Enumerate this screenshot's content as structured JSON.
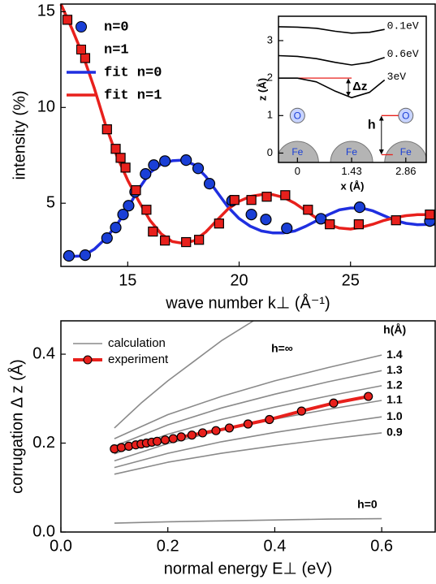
{
  "chart_data": [
    {
      "type": "line",
      "xlabel": "wave number k⊥ (Å⁻¹)",
      "ylabel": "intensity (%)",
      "xlim": [
        12,
        28.8
      ],
      "ylim": [
        1.7,
        15.4
      ],
      "xticks": [
        15,
        20,
        25
      ],
      "yticks": [
        5,
        10,
        15
      ],
      "legend": "upper left",
      "series": [
        {
          "name": "n=0",
          "color": "#1a3fd6",
          "marker": "circle",
          "x": [
            12.36,
            13.09,
            14.07,
            14.46,
            14.79,
            15.04,
            15.33,
            15.8,
            16.17,
            16.67,
            17.62,
            18.16,
            18.67,
            19.68,
            20.55,
            21.2,
            22.14,
            23.67,
            25.41,
            28.56
          ],
          "values": [
            2.25,
            2.29,
            3.18,
            3.73,
            4.41,
            4.87,
            5.59,
            6.53,
            6.99,
            7.2,
            7.25,
            6.82,
            6.02,
            5.13,
            4.41,
            4.15,
            3.69,
            4.19,
            4.79,
            4.07
          ]
        },
        {
          "name": "n=1",
          "color": "#e8201c",
          "marker": "square",
          "x": [
            12.29,
            13.09,
            14.07,
            14.46,
            14.68,
            14.9,
            15.37,
            15.84,
            16.13,
            16.67,
            17.62,
            18.2,
            19.1,
            19.79,
            20.55,
            21.24,
            22.07,
            23.09,
            24.07,
            25.37,
            27.04,
            28.56
          ],
          "values": [
            14.58,
            12.58,
            8.86,
            7.84,
            7.37,
            6.86,
            5.68,
            4.66,
            3.52,
            3.05,
            2.97,
            3.09,
            3.94,
            5.17,
            5.17,
            5.34,
            5.42,
            4.66,
            3.9,
            3.9,
            4.11,
            4.41
          ]
        },
        {
          "name": "fit n=0",
          "color": "#1f2fe0",
          "line": true,
          "x": [
            12.1,
            13,
            13.5,
            14,
            14.5,
            15,
            15.5,
            16,
            16.5,
            17,
            17.5,
            18,
            18.5,
            19,
            19.5,
            20,
            20.5,
            21,
            21.5,
            22,
            22.5,
            23,
            23.5,
            24,
            24.5,
            25,
            25.5,
            26,
            26.5,
            27,
            27.5,
            28,
            28.8
          ],
          "values": [
            2.2,
            2.25,
            2.6,
            3.15,
            3.85,
            4.75,
            5.75,
            6.6,
            7.05,
            7.22,
            7.25,
            7.0,
            6.4,
            5.6,
            4.8,
            4.2,
            3.8,
            3.55,
            3.45,
            3.45,
            3.55,
            3.8,
            4.1,
            4.4,
            4.65,
            4.75,
            4.75,
            4.6,
            4.35,
            4.1,
            3.95,
            3.88,
            3.9
          ]
        },
        {
          "name": "fit n=1",
          "color": "#e8201c",
          "line": true,
          "x": [
            12,
            12.5,
            13,
            13.5,
            14,
            14.5,
            15,
            15.5,
            16,
            16.5,
            17,
            17.5,
            18,
            18.5,
            19,
            19.5,
            20,
            20.5,
            21,
            21.5,
            22,
            22.5,
            23,
            23.5,
            24,
            24.5,
            25,
            25.5,
            26,
            26.5,
            27,
            27.5,
            28,
            28.8
          ],
          "values": [
            15.4,
            14.1,
            12.7,
            11.0,
            9.1,
            7.5,
            6.2,
            5.1,
            4.1,
            3.4,
            3.0,
            2.9,
            3.05,
            3.5,
            4.1,
            4.7,
            5.1,
            5.35,
            5.45,
            5.45,
            5.3,
            5.0,
            4.6,
            4.2,
            3.9,
            3.7,
            3.65,
            3.75,
            3.9,
            4.1,
            4.25,
            4.35,
            4.4,
            4.4
          ]
        }
      ]
    },
    {
      "type": "line",
      "xlabel": "x (Å)",
      "ylabel": "z (Å)",
      "xlim": [
        -0.5,
        3.4
      ],
      "ylim": [
        -0.25,
        3.65
      ],
      "xticks": [
        0,
        1.43,
        2.86
      ],
      "yticks": [
        0,
        1,
        2,
        3
      ],
      "annotations": [
        "Δz",
        "h"
      ],
      "atom_labels": [
        "O",
        "O",
        "Fe",
        "Fe",
        "Fe"
      ],
      "series": [
        {
          "name": "0.1eV",
          "color": "#000000",
          "line": true,
          "x": [
            -0.5,
            0,
            0.5,
            1.0,
            1.43,
            1.9,
            2.3
          ],
          "values": [
            3.37,
            3.36,
            3.33,
            3.25,
            3.2,
            3.22,
            3.3
          ]
        },
        {
          "name": "0.6eV",
          "color": "#000000",
          "line": true,
          "x": [
            -0.5,
            0,
            0.5,
            1.0,
            1.43,
            1.9,
            2.3
          ],
          "values": [
            2.6,
            2.58,
            2.52,
            2.42,
            2.35,
            2.42,
            2.55
          ]
        },
        {
          "name": "3eV",
          "color": "#000000",
          "line": true,
          "x": [
            -0.5,
            0,
            0.5,
            1.0,
            1.43,
            1.9,
            2.3
          ],
          "values": [
            2.0,
            2.0,
            1.9,
            1.65,
            1.48,
            1.62,
            1.95
          ]
        }
      ]
    },
    {
      "type": "line",
      "xlabel": "normal energy E⊥ (eV)",
      "ylabel": "corrugation Δ z (Å)",
      "xlim": [
        0,
        0.7
      ],
      "ylim": [
        0,
        0.475
      ],
      "xticks": [
        {
          "value": 0,
          "label": "0.0"
        },
        0.2,
        0.4,
        0.6
      ],
      "yticks": [
        {
          "value": 0,
          "label": "0.0"
        },
        0.2,
        0.4
      ],
      "legend": "upper left",
      "series": [
        {
          "name": "calculation",
          "color": "#8a8a8a",
          "line": true,
          "label_title": "h(Å)",
          "curves": [
            {
              "label": "0.9",
              "x": [
                0.1,
                0.2,
                0.3,
                0.4,
                0.5,
                0.6
              ],
              "values": [
                0.13,
                0.157,
                0.177,
                0.194,
                0.209,
                0.223
              ]
            },
            {
              "label": "1.0",
              "x": [
                0.1,
                0.2,
                0.3,
                0.4,
                0.5,
                0.6
              ],
              "values": [
                0.145,
                0.177,
                0.203,
                0.224,
                0.242,
                0.259
              ]
            },
            {
              "label": "1.1",
              "x": [
                0.1,
                0.2,
                0.3,
                0.4,
                0.5,
                0.6
              ],
              "values": [
                0.16,
                0.199,
                0.229,
                0.254,
                0.276,
                0.296
              ]
            },
            {
              "label": "1.2",
              "x": [
                0.1,
                0.2,
                0.3,
                0.4,
                0.5,
                0.6
              ],
              "values": [
                0.176,
                0.22,
                0.253,
                0.281,
                0.306,
                0.329
              ]
            },
            {
              "label": "1.3",
              "x": [
                0.1,
                0.2,
                0.3,
                0.4,
                0.5,
                0.6
              ],
              "values": [
                0.193,
                0.241,
                0.279,
                0.31,
                0.338,
                0.363
              ]
            },
            {
              "label": "1.4",
              "x": [
                0.1,
                0.2,
                0.3,
                0.4,
                0.5,
                0.6
              ],
              "values": [
                0.21,
                0.264,
                0.305,
                0.34,
                0.37,
                0.398
              ]
            },
            {
              "label": "h=∞",
              "x": [
                0.1,
                0.15,
                0.2,
                0.25,
                0.3,
                0.36
              ],
              "values": [
                0.234,
                0.29,
                0.34,
                0.385,
                0.43,
                0.475
              ]
            },
            {
              "label": "h=0",
              "x": [
                0.1,
                0.2,
                0.3,
                0.4,
                0.5,
                0.6
              ],
              "values": [
                0.02,
                0.023,
                0.025,
                0.027,
                0.029,
                0.03
              ]
            }
          ]
        },
        {
          "name": "experiment",
          "color": "#e8201c",
          "line": true,
          "marker": "circle",
          "x": [
            0.1,
            0.113,
            0.127,
            0.14,
            0.15,
            0.16,
            0.17,
            0.18,
            0.195,
            0.21,
            0.225,
            0.245,
            0.265,
            0.29,
            0.315,
            0.35,
            0.39,
            0.45,
            0.51,
            0.575
          ],
          "values": [
            0.187,
            0.19,
            0.193,
            0.196,
            0.198,
            0.2,
            0.202,
            0.204,
            0.207,
            0.21,
            0.214,
            0.218,
            0.223,
            0.228,
            0.234,
            0.243,
            0.253,
            0.272,
            0.29,
            0.305
          ]
        }
      ]
    }
  ]
}
